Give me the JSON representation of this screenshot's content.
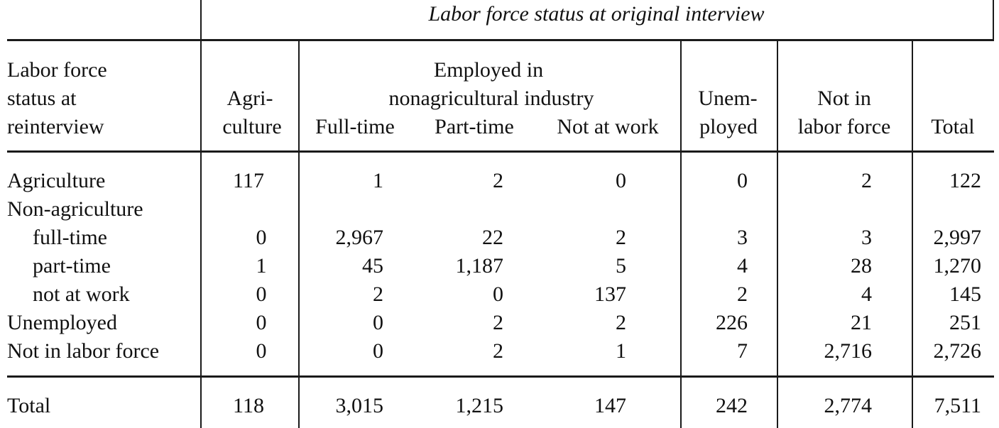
{
  "table": {
    "spanner_title": "Labor force status at original interview",
    "stub_header": [
      "Labor force",
      "status at",
      "reinterview"
    ],
    "group_header": [
      "Employed in",
      "nonagricultural industry"
    ],
    "col_headers": {
      "agri": [
        "Agri-",
        "culture"
      ],
      "full_time": "Full-time",
      "part_time": "Part-time",
      "not_at_work": "Not at work",
      "unemployed": [
        "Unem-",
        "ployed"
      ],
      "not_in_lf": [
        "Not in",
        "labor force"
      ],
      "total": "Total"
    },
    "group_row_label": "Non-agriculture",
    "rows": [
      {
        "label": "Agriculture",
        "indent": false,
        "values": [
          "117",
          "1",
          "2",
          "0",
          "0",
          "2",
          "122"
        ]
      },
      {
        "label": "full-time",
        "indent": true,
        "values": [
          "0",
          "2,967",
          "22",
          "2",
          "3",
          "3",
          "2,997"
        ]
      },
      {
        "label": "part-time",
        "indent": true,
        "values": [
          "1",
          "45",
          "1,187",
          "5",
          "4",
          "28",
          "1,270"
        ]
      },
      {
        "label": "not at work",
        "indent": true,
        "values": [
          "0",
          "2",
          "0",
          "137",
          "2",
          "4",
          "145"
        ]
      },
      {
        "label": "Unemployed",
        "indent": false,
        "values": [
          "0",
          "0",
          "2",
          "2",
          "226",
          "21",
          "251"
        ]
      },
      {
        "label": "Not in labor force",
        "indent": false,
        "values": [
          "0",
          "0",
          "2",
          "1",
          "7",
          "2,716",
          "2,726"
        ]
      }
    ],
    "total_row": {
      "label": "Total",
      "values": [
        "118",
        "3,015",
        "1,215",
        "147",
        "242",
        "2,774",
        "7,511"
      ]
    }
  }
}
